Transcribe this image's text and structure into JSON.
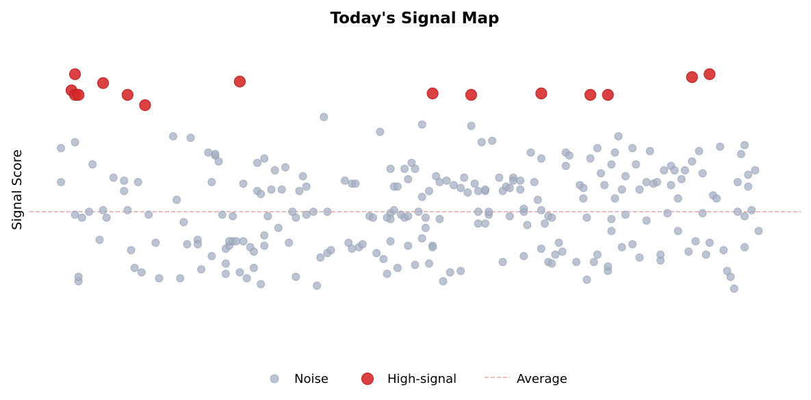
{
  "chart_data": {
    "type": "scatter",
    "title": "Today's Signal Map",
    "xlabel": "",
    "ylabel": "Signal Score",
    "xlim": [
      -2,
      218
    ],
    "ylim": [
      -1.0,
      1.2
    ],
    "grid": false,
    "legend_placement": "bottom-center",
    "average": 0.0,
    "colors": {
      "noise": "#a5b0c4",
      "high": "#d62728",
      "average": "#e8a8a4"
    },
    "legend": [
      {
        "label": "Noise",
        "marker": "noise"
      },
      {
        "label": "High-signal",
        "marker": "high"
      },
      {
        "label": "Average",
        "marker": "average"
      }
    ],
    "series": [
      {
        "name": "High-signal",
        "points": [
          [
            10,
            0.82
          ],
          [
            11,
            0.93
          ],
          [
            11,
            0.79
          ],
          [
            12,
            0.79
          ],
          [
            19,
            0.87
          ],
          [
            26,
            0.79
          ],
          [
            31,
            0.72
          ],
          [
            58,
            0.88
          ],
          [
            113,
            0.8
          ],
          [
            124,
            0.79
          ],
          [
            144,
            0.8
          ],
          [
            158,
            0.79
          ],
          [
            163,
            0.79
          ],
          [
            187,
            0.91
          ],
          [
            192,
            0.93
          ]
        ]
      },
      {
        "name": "Noise",
        "points": [
          [
            7,
            0.43
          ],
          [
            7,
            0.2
          ],
          [
            11,
            0.47
          ],
          [
            11,
            -0.02
          ],
          [
            12,
            -0.47
          ],
          [
            12,
            -0.44
          ],
          [
            13,
            -0.04
          ],
          [
            15,
            0.0
          ],
          [
            16,
            0.32
          ],
          [
            18,
            -0.19
          ],
          [
            19,
            0.01
          ],
          [
            20,
            -0.04
          ],
          [
            22,
            0.23
          ],
          [
            25,
            0.21
          ],
          [
            25,
            0.14
          ],
          [
            26,
            0.01
          ],
          [
            27,
            -0.26
          ],
          [
            28,
            -0.38
          ],
          [
            29,
            0.2
          ],
          [
            30,
            -0.41
          ],
          [
            32,
            -0.02
          ],
          [
            34,
            -0.21
          ],
          [
            35,
            -0.45
          ],
          [
            39,
            0.51
          ],
          [
            40,
            0.08
          ],
          [
            41,
            -0.45
          ],
          [
            42,
            -0.07
          ],
          [
            43,
            -0.22
          ],
          [
            44,
            0.5
          ],
          [
            46,
            -0.19
          ],
          [
            46,
            -0.22
          ],
          [
            47,
            -0.39
          ],
          [
            49,
            0.4
          ],
          [
            50,
            0.2
          ],
          [
            50,
            -0.3
          ],
          [
            51,
            0.38
          ],
          [
            51,
            0.39
          ],
          [
            52,
            0.34
          ],
          [
            53,
            -0.02
          ],
          [
            54,
            -0.25
          ],
          [
            54,
            -0.35
          ],
          [
            54,
            -0.42
          ],
          [
            55,
            -0.23
          ],
          [
            55,
            -0.2
          ],
          [
            56,
            -0.03
          ],
          [
            56,
            -0.2
          ],
          [
            57,
            -0.2
          ],
          [
            58,
            -0.41
          ],
          [
            59,
            0.19
          ],
          [
            59,
            -0.2
          ],
          [
            60,
            -0.45
          ],
          [
            61,
            -0.24
          ],
          [
            62,
            -0.38
          ],
          [
            62,
            -0.27
          ],
          [
            63,
            0.14
          ],
          [
            63,
            0.33
          ],
          [
            64,
            0.12
          ],
          [
            64,
            -0.49
          ],
          [
            65,
            0.36
          ],
          [
            65,
            -0.16
          ],
          [
            65,
            -0.23
          ],
          [
            66,
            -0.03
          ],
          [
            67,
            0.15
          ],
          [
            68,
            0.28
          ],
          [
            69,
            -0.11
          ],
          [
            70,
            0.15
          ],
          [
            71,
            0.3
          ],
          [
            72,
            -0.21
          ],
          [
            73,
            0.0
          ],
          [
            74,
            -0.44
          ],
          [
            74,
            -0.04
          ],
          [
            75,
            0.14
          ],
          [
            76,
            0.24
          ],
          [
            77,
            0.17
          ],
          [
            77,
            -0.02
          ],
          [
            79,
            0.0
          ],
          [
            80,
            -0.5
          ],
          [
            81,
            -0.31
          ],
          [
            82,
            0.64
          ],
          [
            83,
            0.0
          ],
          [
            83,
            -0.28
          ],
          [
            84,
            -0.26
          ],
          [
            88,
            0.21
          ],
          [
            89,
            -0.21
          ],
          [
            90,
            -0.25
          ],
          [
            90,
            0.19
          ],
          [
            91,
            0.19
          ],
          [
            92,
            -0.24
          ],
          [
            93,
            -0.22
          ],
          [
            95,
            -0.03
          ],
          [
            96,
            -0.04
          ],
          [
            97,
            -0.28
          ],
          [
            98,
            0.54
          ],
          [
            99,
            -0.32
          ],
          [
            100,
            -0.04
          ],
          [
            100,
            -0.42
          ],
          [
            101,
            0.29
          ],
          [
            101,
            -0.01
          ],
          [
            101,
            -0.05
          ],
          [
            101,
            -0.2
          ],
          [
            102,
            0.17
          ],
          [
            102,
            0.01
          ],
          [
            103,
            0.17
          ],
          [
            103,
            -0.38
          ],
          [
            104,
            -0.02
          ],
          [
            105,
            0.29
          ],
          [
            105,
            -0.04
          ],
          [
            106,
            0.22
          ],
          [
            106,
            -0.03
          ],
          [
            106,
            -0.23
          ],
          [
            107,
            0.33
          ],
          [
            108,
            0.29
          ],
          [
            108,
            -0.36
          ],
          [
            109,
            0.0
          ],
          [
            110,
            0.59
          ],
          [
            110,
            0.1
          ],
          [
            110,
            -0.18
          ],
          [
            111,
            -0.11
          ],
          [
            111,
            -0.04
          ],
          [
            112,
            0.14
          ],
          [
            112,
            -0.35
          ],
          [
            113,
            -0.23
          ],
          [
            113,
            -0.24
          ],
          [
            114,
            0.24
          ],
          [
            115,
            0.2
          ],
          [
            115,
            -0.05
          ],
          [
            116,
            -0.47
          ],
          [
            117,
            0.21
          ],
          [
            118,
            -0.41
          ],
          [
            119,
            0.18
          ],
          [
            121,
            0.16
          ],
          [
            121,
            -0.4
          ],
          [
            122,
            0.23
          ],
          [
            123,
            0.13
          ],
          [
            124,
            0.58
          ],
          [
            125,
            0.19
          ],
          [
            126,
            0.14
          ],
          [
            126,
            0.0
          ],
          [
            126,
            -0.08
          ],
          [
            127,
            0.47
          ],
          [
            128,
            0.14
          ],
          [
            128,
            0.15
          ],
          [
            128,
            -0.08
          ],
          [
            129,
            -0.02
          ],
          [
            129,
            0.0
          ],
          [
            130,
            0.48
          ],
          [
            132,
            0.23
          ],
          [
            133,
            -0.34
          ],
          [
            133,
            0.14
          ],
          [
            134,
            0.17
          ],
          [
            135,
            0.16
          ],
          [
            135,
            -0.03
          ],
          [
            136,
            0.23
          ],
          [
            136,
            0.21
          ],
          [
            138,
            0.21
          ],
          [
            138,
            0.15
          ],
          [
            139,
            0.0
          ],
          [
            139,
            0.02
          ],
          [
            139,
            -0.3
          ],
          [
            140,
            -0.09
          ],
          [
            141,
            0.4
          ],
          [
            142,
            0.2
          ],
          [
            143,
            0.08
          ],
          [
            144,
            0.01
          ],
          [
            144,
            0.36
          ],
          [
            144,
            -0.25
          ],
          [
            145,
            -0.08
          ],
          [
            146,
            -0.03
          ],
          [
            146,
            -0.34
          ],
          [
            147,
            -0.04
          ],
          [
            147,
            -0.35
          ],
          [
            148,
            -0.29
          ],
          [
            149,
            -0.21
          ],
          [
            150,
            -0.27
          ],
          [
            151,
            0.31
          ],
          [
            151,
            0.4
          ],
          [
            152,
            0.38
          ],
          [
            154,
            -0.34
          ],
          [
            155,
            0.18
          ],
          [
            156,
            0.16
          ],
          [
            156,
            0.09
          ],
          [
            157,
            -0.46
          ],
          [
            157,
            -0.04
          ],
          [
            158,
            0.36
          ],
          [
            159,
            -0.34
          ],
          [
            160,
            -0.29
          ],
          [
            160,
            0.43
          ],
          [
            161,
            0.26
          ],
          [
            162,
            0.18
          ],
          [
            163,
            -0.4
          ],
          [
            163,
            -0.37
          ],
          [
            164,
            0.32
          ],
          [
            164,
            -0.05
          ],
          [
            164,
            -0.13
          ],
          [
            165,
            0.4
          ],
          [
            165,
            0.09
          ],
          [
            166,
            0.51
          ],
          [
            167,
            0.15
          ],
          [
            167,
            -0.24
          ],
          [
            168,
            0.24
          ],
          [
            168,
            -0.02
          ],
          [
            170,
            0.43
          ],
          [
            170,
            -0.22
          ],
          [
            171,
            0.32
          ],
          [
            172,
            0.15
          ],
          [
            172,
            -0.31
          ],
          [
            174,
            0.2
          ],
          [
            174,
            -0.06
          ],
          [
            175,
            0.41
          ],
          [
            176,
            0.19
          ],
          [
            177,
            0.2
          ],
          [
            178,
            -0.33
          ],
          [
            178,
            -0.29
          ],
          [
            179,
            0.28
          ],
          [
            180,
            -0.01
          ],
          [
            181,
            0.31
          ],
          [
            181,
            0.18
          ],
          [
            182,
            0.28
          ],
          [
            183,
            0.09
          ],
          [
            183,
            -0.13
          ],
          [
            184,
            0.22
          ],
          [
            185,
            0.28
          ],
          [
            186,
            -0.27
          ],
          [
            187,
            0.34
          ],
          [
            188,
            -0.2
          ],
          [
            189,
            0.41
          ],
          [
            190,
            -0.01
          ],
          [
            190,
            0.26
          ],
          [
            191,
            -0.29
          ],
          [
            192,
            -0.21
          ],
          [
            193,
            0.11
          ],
          [
            194,
            0.09
          ],
          [
            195,
            0.44
          ],
          [
            196,
            -0.26
          ],
          [
            197,
            -0.4
          ],
          [
            198,
            -0.44
          ],
          [
            199,
            -0.52
          ],
          [
            200,
            0.2
          ],
          [
            200,
            0.0
          ],
          [
            201,
            0.39
          ],
          [
            202,
            0.45
          ],
          [
            202,
            -0.03
          ],
          [
            202,
            -0.24
          ],
          [
            203,
            0.25
          ],
          [
            203,
            0.17
          ],
          [
            204,
            0.01
          ],
          [
            205,
            0.28
          ],
          [
            206,
            -0.13
          ]
        ]
      }
    ]
  }
}
